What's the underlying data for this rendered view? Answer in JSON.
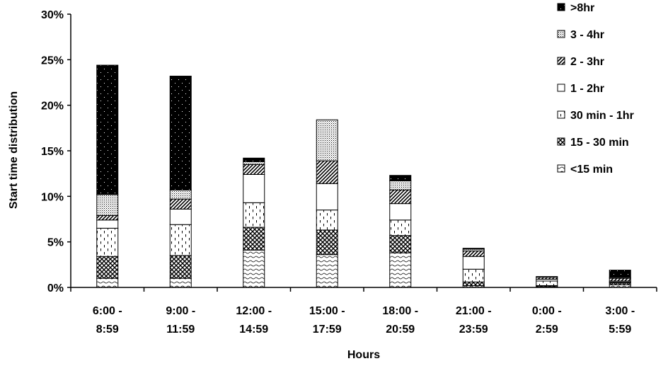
{
  "chart_data": {
    "type": "bar",
    "stacked": true,
    "xlabel": "Hours",
    "ylabel": "Start time distribution",
    "ylim": [
      0,
      30
    ],
    "yticks": [
      "0%",
      "5%",
      "10%",
      "15%",
      "20%",
      "25%",
      "30%"
    ],
    "categories": [
      [
        "6:00 -",
        "8:59"
      ],
      [
        "9:00 -",
        "11:59"
      ],
      [
        "12:00 -",
        "14:59"
      ],
      [
        "15:00 -",
        "17:59"
      ],
      [
        "18:00 -",
        "20:59"
      ],
      [
        "21:00 -",
        "23:59"
      ],
      [
        "0:00 -",
        "2:59"
      ],
      [
        "3:00 -",
        "5:59"
      ]
    ],
    "series": [
      {
        "name": "<15 min",
        "pattern": "wave",
        "values": [
          1.0,
          1.0,
          4.1,
          3.6,
          3.8,
          0.2,
          0.1,
          0.3
        ]
      },
      {
        "name": "15 - 30 min",
        "pattern": "checker",
        "values": [
          2.4,
          2.5,
          2.5,
          2.7,
          1.9,
          0.4,
          0.1,
          0.2
        ]
      },
      {
        "name": "30 min - 1hr",
        "pattern": "dash",
        "values": [
          3.1,
          3.4,
          2.7,
          2.2,
          1.7,
          1.4,
          0.5,
          0.1
        ]
      },
      {
        "name": "1 - 2hr",
        "pattern": "white",
        "values": [
          0.9,
          1.7,
          3.1,
          2.9,
          1.8,
          1.4,
          0.2,
          0.1
        ]
      },
      {
        "name": "2 - 3hr",
        "pattern": "diag",
        "values": [
          0.5,
          1.1,
          1.1,
          2.5,
          1.5,
          0.6,
          0.2,
          0.3
        ]
      },
      {
        "name": "3 - 4hr",
        "pattern": "dots",
        "values": [
          2.3,
          1.0,
          0.3,
          4.5,
          1.0,
          0.2,
          0.1,
          0.1
        ]
      },
      {
        "name": ">8hr",
        "pattern": "black",
        "values": [
          14.2,
          12.5,
          0.4,
          0.0,
          0.6,
          0.1,
          0.0,
          0.8
        ]
      }
    ],
    "legend_order": [
      ">8hr",
      "3 - 4hr",
      "2 - 3hr",
      "1 - 2hr",
      "30 min - 1hr",
      "15 - 30 min",
      "<15 min"
    ],
    "legend_position": "top-right",
    "grid": false
  }
}
